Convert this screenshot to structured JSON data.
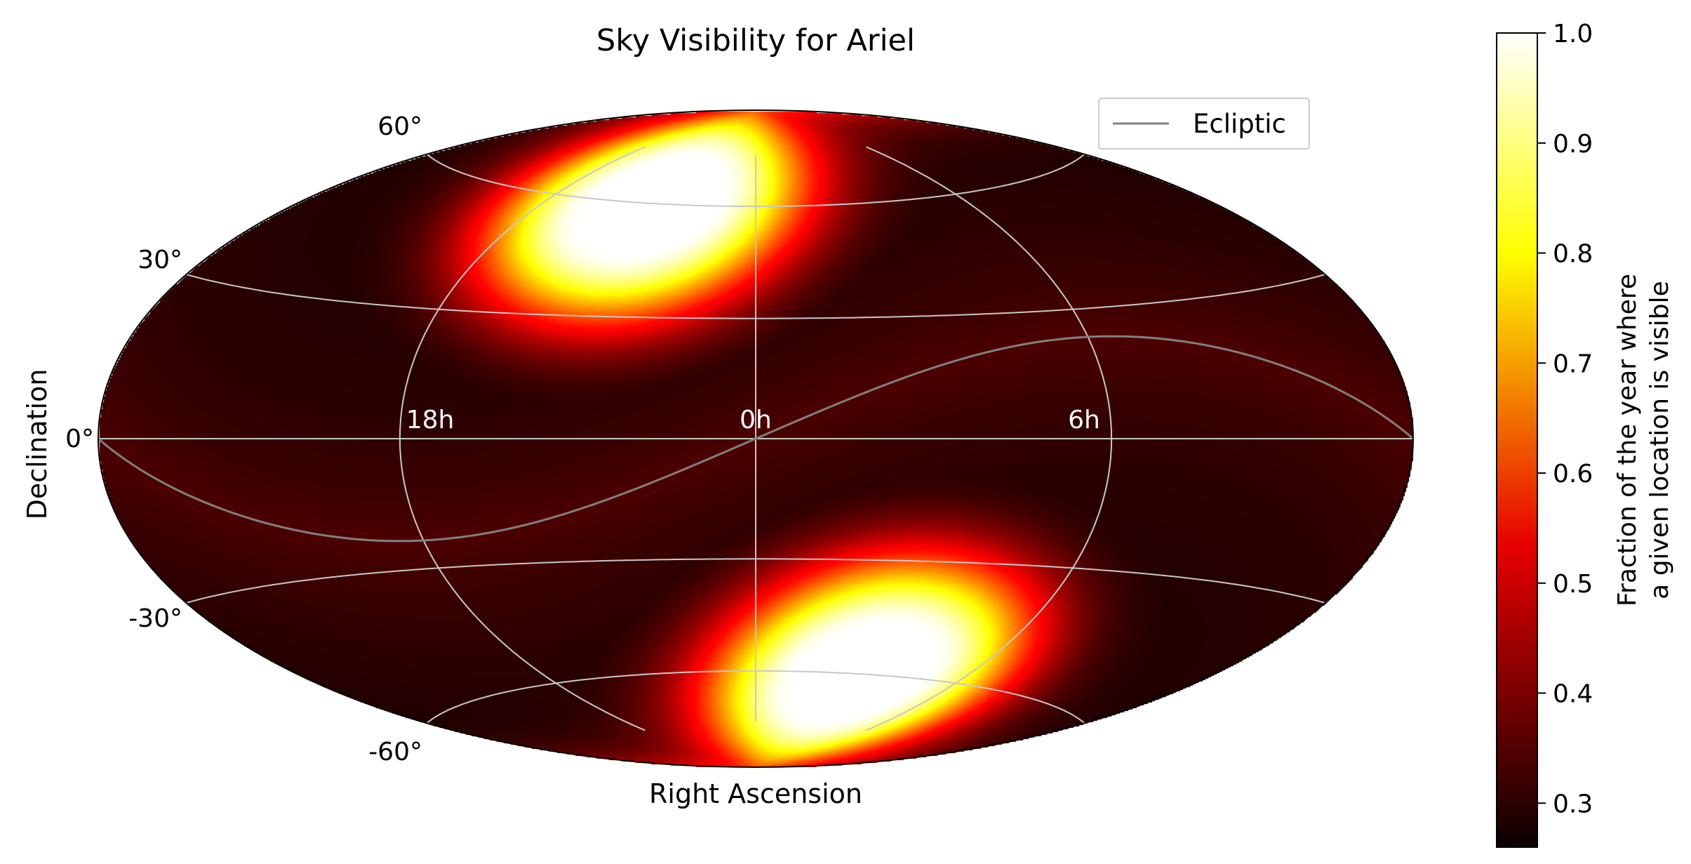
{
  "chart_data": {
    "type": "heatmap",
    "projection": "hammer",
    "title": "Sky Visibility for Ariel",
    "xlabel": "Right Ascension",
    "ylabel": "Declination",
    "ra_ticks": [
      "18h",
      "0h",
      "6h"
    ],
    "dec_ticks": [
      "60°",
      "30°",
      "0°",
      "-30°",
      "-60°"
    ],
    "colormap": "hot",
    "colorbar": {
      "label_line1": "Fraction of the year where",
      "label_line2": "a given location is visible",
      "range": [
        0.26,
        1.0
      ],
      "ticks": [
        "0.3",
        "0.4",
        "0.5",
        "0.6",
        "0.7",
        "0.8",
        "0.9",
        "1.0"
      ]
    },
    "legend": {
      "entries": [
        {
          "label": "Ecliptic",
          "color": "#808080"
        }
      ],
      "placement": "upper right"
    },
    "series": [
      {
        "name": "Ecliptic",
        "obliquity_deg": 23.44
      }
    ],
    "visibility_field": {
      "description_free": true,
      "baseline": 0.28,
      "hotspots": [
        {
          "ra_deg": -45,
          "dec_deg": 60,
          "peak": 1.0,
          "radius_deg": 30
        },
        {
          "ra_deg": 45,
          "dec_deg": -60,
          "peak": 1.0,
          "radius_deg": 30
        }
      ]
    },
    "grid": true
  }
}
